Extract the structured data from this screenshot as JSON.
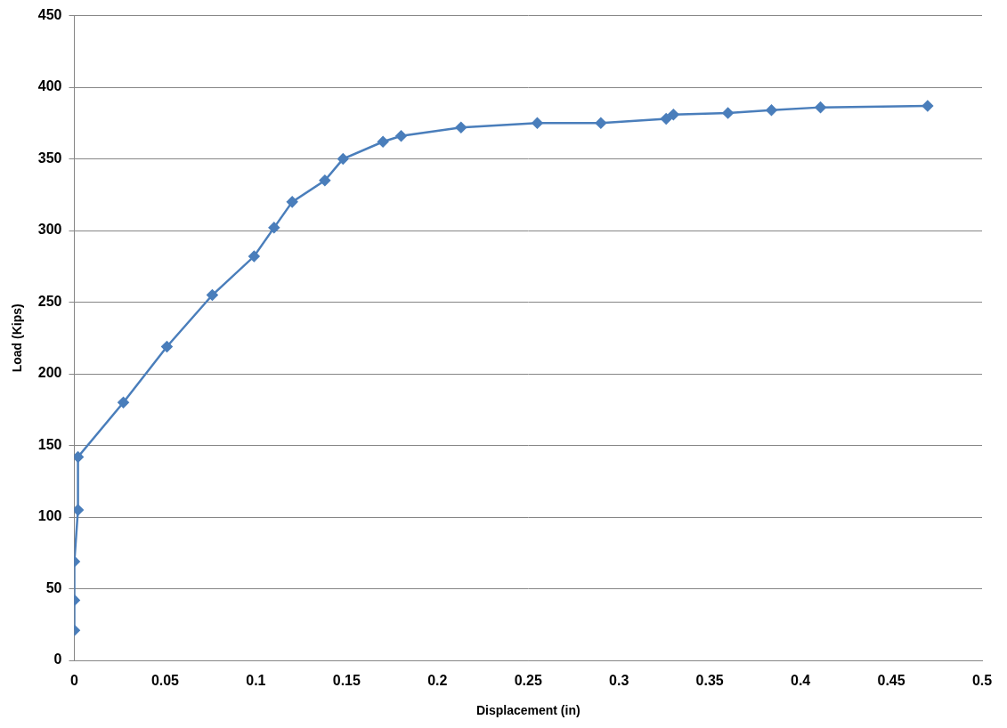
{
  "chart_data": {
    "type": "line",
    "x_label": "Displacement (in)",
    "y_label": "Load (Kips)",
    "x": [
      0,
      0,
      0,
      0.002,
      0.002,
      0.027,
      0.051,
      0.076,
      0.099,
      0.11,
      0.12,
      0.138,
      0.148,
      0.17,
      0.18,
      0.213,
      0.255,
      0.29,
      0.326,
      0.33,
      0.36,
      0.384,
      0.411,
      0.47
    ],
    "series": [
      {
        "name": "Load",
        "color": "#4a7ebb",
        "marker": "diamond",
        "line_style": "solid",
        "values": [
          21,
          42,
          69,
          105,
          142,
          180,
          219,
          255,
          282,
          302,
          320,
          335,
          350,
          362,
          366,
          372,
          375,
          375,
          378,
          381,
          382,
          384,
          386,
          387
        ]
      }
    ],
    "xlim": [
      0,
      0.5
    ],
    "xticks": [
      0,
      0.05,
      0.1,
      0.15,
      0.2,
      0.25,
      0.3,
      0.35,
      0.4,
      0.45,
      0.5
    ],
    "ylim": [
      0,
      450
    ],
    "yticks": [
      0,
      50,
      100,
      150,
      200,
      250,
      300,
      350,
      400,
      450
    ],
    "grid": true
  }
}
